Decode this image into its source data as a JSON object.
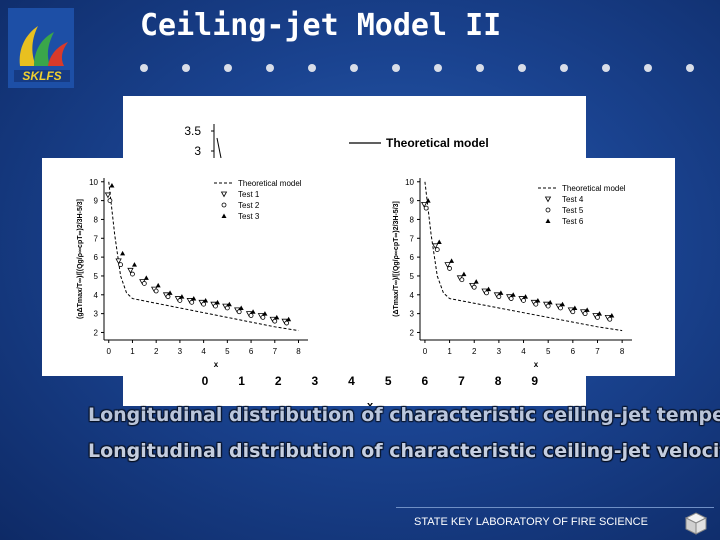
{
  "slide": {
    "title": "Ceiling-jet Model II",
    "logo_text": "SKLFS",
    "caption_temperature": "Longitudinal distribution of characteristic ceiling-jet temperature and comparison with experimental results",
    "caption_velocity": "Longitudinal distribution of characteristic ceiling-jet velocity",
    "footer": "STATE KEY LABORATORY OF FIRE SCIENCE",
    "colors": {
      "background": "#1a4390",
      "text": "#ffffff",
      "panel": "#ffffff"
    }
  },
  "chart_data": [
    {
      "type": "line",
      "legend": [
        "Theoretical model"
      ],
      "xlabel": "x",
      "x_ticks": [
        "0",
        "1",
        "2",
        "3",
        "4",
        "5",
        "6",
        "7",
        "8",
        "9"
      ],
      "y_ticks": [
        "3.5",
        "3"
      ],
      "xlim": [
        0,
        9.5
      ],
      "ylim": [
        2.8,
        3.7
      ],
      "series": [
        {
          "name": "Theoretical model",
          "x": [
            0.0
          ],
          "y": [
            3.3
          ]
        }
      ]
    },
    {
      "type": "scatter",
      "ylabel": "(gΔTmax/T∞)/[(Qg/ρ∞cpT∞)2/3H-5/3]",
      "xlabel": "x",
      "x_ticks": [
        "0",
        "1",
        "2",
        "3",
        "4",
        "5",
        "6",
        "7",
        "8"
      ],
      "y_ticks": [
        "10",
        "9",
        "8",
        "7",
        "6",
        "5",
        "4",
        "3",
        "2"
      ],
      "xlim": [
        -0.2,
        8.4
      ],
      "ylim": [
        1.6,
        10.2
      ],
      "legend": [
        "Theoretical model",
        "Test 1",
        "Test 2",
        "Test 3"
      ],
      "series": [
        {
          "name": "Theoretical model",
          "type": "line",
          "x": [
            0.0,
            0.25,
            0.5,
            0.75,
            1.0,
            2.0,
            3.0,
            4.0,
            5.0,
            6.0,
            7.0,
            8.0
          ],
          "y": [
            10.0,
            7.2,
            5.0,
            4.1,
            3.8,
            3.55,
            3.3,
            3.05,
            2.8,
            2.55,
            2.3,
            2.1
          ]
        },
        {
          "name": "Test 1",
          "x": [
            0.05,
            0.5,
            1.0,
            1.5,
            2.0,
            2.5,
            3.0,
            3.5,
            4.0,
            4.5,
            5.0,
            5.5,
            6.0,
            6.5,
            7.0,
            7.5
          ],
          "y": [
            9.3,
            5.8,
            5.3,
            4.7,
            4.3,
            4.0,
            3.8,
            3.7,
            3.6,
            3.5,
            3.4,
            3.2,
            3.0,
            2.9,
            2.7,
            2.6
          ]
        },
        {
          "name": "Test 2",
          "x": [
            0.05,
            0.5,
            1.0,
            1.5,
            2.0,
            2.5,
            3.0,
            3.5,
            4.0,
            4.5,
            5.0,
            5.5,
            6.0,
            6.5,
            7.0,
            7.5
          ],
          "y": [
            9.0,
            5.6,
            5.1,
            4.6,
            4.2,
            3.9,
            3.7,
            3.6,
            3.5,
            3.4,
            3.3,
            3.1,
            2.9,
            2.8,
            2.6,
            2.5
          ]
        },
        {
          "name": "Test 3",
          "x": [
            0.05,
            0.5,
            1.0,
            1.5,
            2.0,
            2.5,
            3.0,
            3.5,
            4.0,
            4.5,
            5.0,
            5.5,
            6.0,
            6.5,
            7.0,
            7.5
          ],
          "y": [
            9.8,
            6.2,
            5.6,
            4.9,
            4.5,
            4.1,
            3.9,
            3.8,
            3.7,
            3.6,
            3.5,
            3.3,
            3.1,
            3.0,
            2.8,
            2.7
          ]
        }
      ]
    },
    {
      "type": "scatter",
      "ylabel": "(ΔTmax/T∞)/[(Qg/ρ∞cpT∞)2/3H-5/3]",
      "xlabel": "x",
      "x_ticks": [
        "0",
        "1",
        "2",
        "3",
        "4",
        "5",
        "6",
        "7",
        "8"
      ],
      "y_ticks": [
        "10",
        "9",
        "8",
        "7",
        "6",
        "5",
        "4",
        "3",
        "2"
      ],
      "xlim": [
        -0.2,
        8.4
      ],
      "ylim": [
        1.6,
        10.2
      ],
      "legend": [
        "Theoretical model",
        "Test 4",
        "Test 5",
        "Test 6"
      ],
      "series": [
        {
          "name": "Theoretical model",
          "type": "line",
          "x": [
            0.0,
            0.25,
            0.5,
            0.75,
            1.0,
            2.0,
            3.0,
            4.0,
            5.0,
            6.0,
            7.0,
            8.0
          ],
          "y": [
            10.0,
            7.2,
            5.0,
            4.1,
            3.8,
            3.55,
            3.3,
            3.05,
            2.8,
            2.55,
            2.3,
            2.1
          ]
        },
        {
          "name": "Test 4",
          "x": [
            0.05,
            0.5,
            1.0,
            1.5,
            2.0,
            2.5,
            3.0,
            3.5,
            4.0,
            4.5,
            5.0,
            5.5,
            6.0,
            6.5,
            7.0,
            7.5
          ],
          "y": [
            8.8,
            6.6,
            5.6,
            4.9,
            4.5,
            4.2,
            4.0,
            3.9,
            3.8,
            3.6,
            3.5,
            3.4,
            3.2,
            3.1,
            2.9,
            2.8
          ]
        },
        {
          "name": "Test 5",
          "x": [
            0.05,
            0.5,
            1.0,
            1.5,
            2.0,
            2.5,
            3.0,
            3.5,
            4.0,
            4.5,
            5.0,
            5.5,
            6.0,
            6.5,
            7.0,
            7.5
          ],
          "y": [
            8.6,
            6.4,
            5.4,
            4.8,
            4.4,
            4.1,
            3.9,
            3.8,
            3.7,
            3.5,
            3.4,
            3.3,
            3.1,
            3.0,
            2.8,
            2.7
          ]
        },
        {
          "name": "Test 6",
          "x": [
            0.05,
            0.5,
            1.0,
            1.5,
            2.0,
            2.5,
            3.0,
            3.5,
            4.0,
            4.5,
            5.0,
            5.5,
            6.0,
            6.5,
            7.0,
            7.5
          ],
          "y": [
            9.0,
            6.8,
            5.8,
            5.1,
            4.7,
            4.3,
            4.1,
            4.0,
            3.9,
            3.7,
            3.6,
            3.5,
            3.3,
            3.2,
            3.0,
            2.9
          ]
        }
      ]
    }
  ]
}
